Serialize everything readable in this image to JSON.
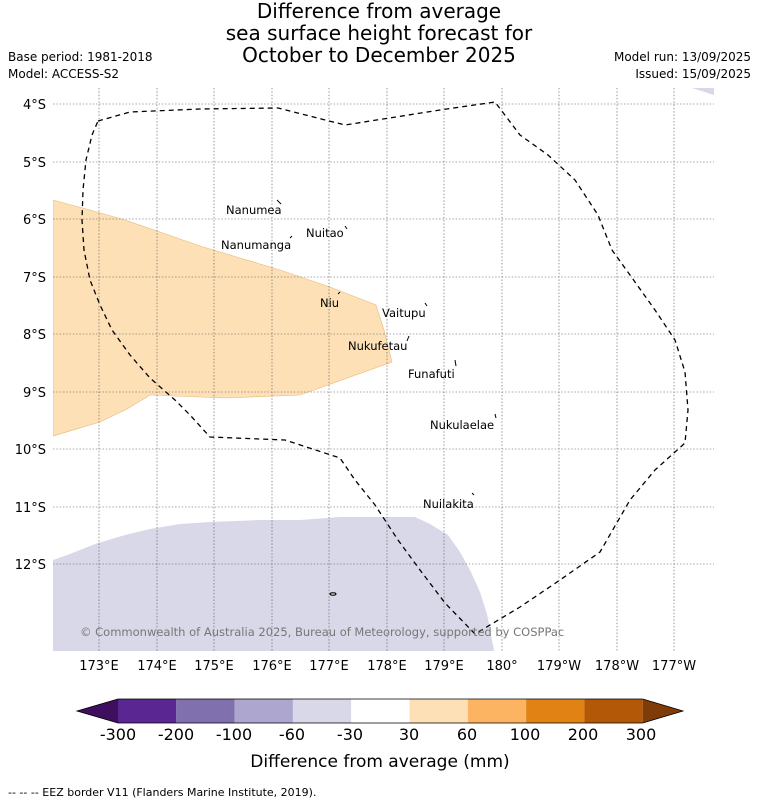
{
  "title": {
    "line1": "Difference from average",
    "line2": "sea surface height forecast for",
    "line3": "October to December 2025"
  },
  "meta": {
    "base_period": "Base period: 1981-2018",
    "model": "Model: ACCESS-S2",
    "model_run": "Model run: 13/09/2025",
    "issued": "Issued: 15/09/2025"
  },
  "map": {
    "lat_labels": [
      "4°S",
      "5°S",
      "6°S",
      "7°S",
      "8°S",
      "9°S",
      "10°S",
      "11°S",
      "12°S"
    ],
    "lon_labels": [
      "173°E",
      "174°E",
      "175°E",
      "176°E",
      "177°E",
      "178°E",
      "179°E",
      "180°",
      "179°W",
      "178°W",
      "177°W"
    ],
    "islands": [
      "Nanumea",
      "Nuitao",
      "Nanumanga",
      "Niu",
      "Vaitupu",
      "Nukufetau",
      "Funafuti",
      "Nukulaelae",
      "Nuilakita"
    ],
    "copyright": "© Commonwealth of Australia 2025, Bureau of Meteorology, supported by COSPPac",
    "colors": {
      "positive_30_60": "#fde0b6",
      "negative_60_30": "#d8d8e8",
      "eez_border": "#000000"
    }
  },
  "colorbar": {
    "ticks": [
      "-300",
      "-200",
      "-100",
      "-60",
      "-30",
      "30",
      "60",
      "100",
      "200",
      "300"
    ],
    "colors": [
      "#3f0f5f",
      "#5a2691",
      "#8070ae",
      "#ada6cf",
      "#d8d8e8",
      "#ffffff",
      "#fde0b6",
      "#fdb462",
      "#e08214",
      "#b35806",
      "#7f3b08"
    ],
    "title": "Difference from average (mm)"
  },
  "footnote": "--  --  -- EEZ border V11 (Flanders Marine Institute, 2019)."
}
